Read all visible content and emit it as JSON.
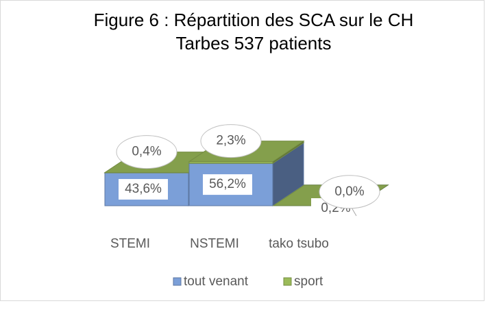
{
  "chart_data": {
    "type": "bar3d_stacked",
    "title": "Figure 6 : Répartition des SCA sur le CH Tarbes 537 patients",
    "categories": [
      "STEMI",
      "NSTEMI",
      "tako tsubo"
    ],
    "series": [
      {
        "name": "tout venant",
        "color": "#7b9fd8",
        "values": [
          43.6,
          56.2,
          0.2
        ],
        "value_labels": [
          "43,6%",
          "56,2%",
          "0,2%"
        ]
      },
      {
        "name": "sport",
        "color": "#9bbb59",
        "values": [
          0.4,
          2.3,
          0.0
        ],
        "value_labels": [
          "0,4%",
          "2,3%",
          "0,0%"
        ]
      }
    ],
    "legend": "bottom"
  }
}
